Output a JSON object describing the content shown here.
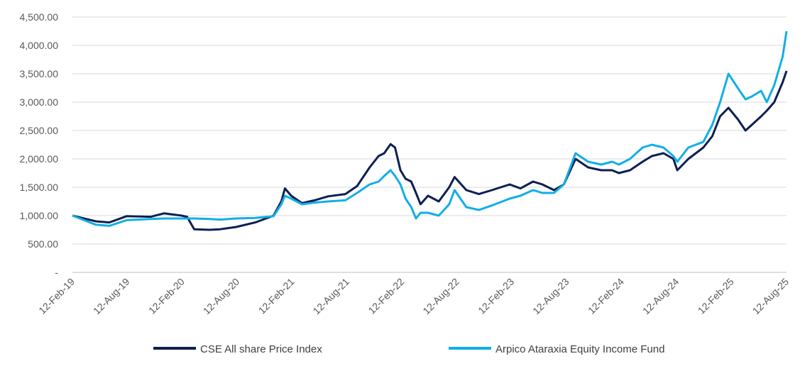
{
  "chart_data": {
    "type": "line",
    "title": "",
    "xlabel": "",
    "ylabel": "",
    "ylim": [
      0,
      4500
    ],
    "grid": "horizontal",
    "legend_position": "bottom",
    "y_ticks": [
      "-",
      "500.00",
      "1,000.00",
      "1,500.00",
      "2,000.00",
      "2,500.00",
      "3,000.00",
      "3,500.00",
      "4,000.00",
      "4,500.00"
    ],
    "x_ticks": [
      "12-Feb-19",
      "12-Aug-19",
      "12-Feb-20",
      "12-Aug-20",
      "12-Feb-21",
      "12-Aug-21",
      "12-Feb-22",
      "12-Aug-22",
      "12-Feb-23",
      "12-Aug-23",
      "12-Feb-24",
      "12-Aug-24",
      "12-Feb-25",
      "12-Aug-25"
    ],
    "series": [
      {
        "name": "CSE All share Price Index",
        "color": "#0d1f52",
        "x": [
          "2019-02-12",
          "2019-05-01",
          "2019-06-15",
          "2019-08-12",
          "2019-11-01",
          "2019-12-15",
          "2020-02-12",
          "2020-03-01",
          "2020-03-25",
          "2020-05-15",
          "2020-06-20",
          "2020-08-12",
          "2020-10-15",
          "2020-12-15",
          "2021-01-10",
          "2021-01-22",
          "2021-02-12",
          "2021-03-20",
          "2021-05-01",
          "2021-06-15",
          "2021-08-12",
          "2021-09-20",
          "2021-11-01",
          "2021-12-01",
          "2021-12-20",
          "2022-01-10",
          "2022-01-25",
          "2022-02-12",
          "2022-03-01",
          "2022-03-20",
          "2022-04-05",
          "2022-04-20",
          "2022-05-15",
          "2022-06-20",
          "2022-07-25",
          "2022-08-12",
          "2022-09-20",
          "2022-11-01",
          "2022-12-15",
          "2023-02-12",
          "2023-03-20",
          "2023-05-01",
          "2023-06-01",
          "2023-07-10",
          "2023-08-12",
          "2023-09-20",
          "2023-11-01",
          "2023-12-15",
          "2024-01-20",
          "2024-02-12",
          "2024-03-20",
          "2024-05-01",
          "2024-06-01",
          "2024-07-10",
          "2024-08-12",
          "2024-08-25",
          "2024-10-01",
          "2024-11-20",
          "2024-12-20",
          "2025-01-15",
          "2025-02-12",
          "2025-03-15",
          "2025-04-10",
          "2025-05-01",
          "2025-06-01",
          "2025-06-20",
          "2025-07-15",
          "2025-08-12",
          "2025-08-25"
        ],
        "values": [
          1000,
          900,
          880,
          990,
          980,
          1040,
          1000,
          980,
          760,
          750,
          760,
          800,
          880,
          1000,
          1250,
          1480,
          1350,
          1220,
          1270,
          1340,
          1380,
          1520,
          1850,
          2050,
          2100,
          2260,
          2200,
          1800,
          1650,
          1600,
          1400,
          1200,
          1350,
          1250,
          1500,
          1680,
          1450,
          1380,
          1450,
          1550,
          1480,
          1600,
          1550,
          1450,
          1550,
          2000,
          1850,
          1800,
          1800,
          1750,
          1800,
          1950,
          2050,
          2100,
          2000,
          1800,
          2000,
          2200,
          2400,
          2750,
          2900,
          2700,
          2500,
          2600,
          2750,
          2850,
          3000,
          3350,
          3550
        ]
      },
      {
        "name": "Arpico Ataraxia Equity Income Fund",
        "color": "#12aee8",
        "x": [
          "2019-02-12",
          "2019-05-01",
          "2019-06-15",
          "2019-08-12",
          "2019-11-01",
          "2019-12-15",
          "2020-02-12",
          "2020-03-01",
          "2020-03-25",
          "2020-05-15",
          "2020-06-20",
          "2020-08-12",
          "2020-10-15",
          "2020-12-15",
          "2021-01-10",
          "2021-01-22",
          "2021-02-12",
          "2021-03-20",
          "2021-05-01",
          "2021-06-15",
          "2021-08-12",
          "2021-09-20",
          "2021-11-01",
          "2021-12-01",
          "2021-12-20",
          "2022-01-10",
          "2022-01-25",
          "2022-02-12",
          "2022-03-01",
          "2022-03-20",
          "2022-04-05",
          "2022-04-20",
          "2022-05-15",
          "2022-06-20",
          "2022-07-25",
          "2022-08-12",
          "2022-09-20",
          "2022-11-01",
          "2022-12-15",
          "2023-02-12",
          "2023-03-20",
          "2023-05-01",
          "2023-06-01",
          "2023-07-10",
          "2023-08-12",
          "2023-09-20",
          "2023-11-01",
          "2023-12-15",
          "2024-01-20",
          "2024-02-12",
          "2024-03-20",
          "2024-05-01",
          "2024-06-01",
          "2024-07-10",
          "2024-08-12",
          "2024-08-25",
          "2024-10-01",
          "2024-11-20",
          "2024-12-20",
          "2025-01-15",
          "2025-02-12",
          "2025-03-15",
          "2025-04-10",
          "2025-05-01",
          "2025-06-01",
          "2025-06-20",
          "2025-07-15",
          "2025-08-12",
          "2025-08-25"
        ],
        "values": [
          1000,
          840,
          820,
          920,
          940,
          950,
          950,
          950,
          950,
          940,
          930,
          950,
          960,
          990,
          1200,
          1350,
          1300,
          1200,
          1230,
          1250,
          1270,
          1400,
          1550,
          1600,
          1700,
          1800,
          1700,
          1550,
          1300,
          1150,
          950,
          1050,
          1050,
          1000,
          1200,
          1450,
          1150,
          1100,
          1180,
          1300,
          1350,
          1450,
          1400,
          1400,
          1550,
          2100,
          1950,
          1900,
          1950,
          1900,
          2000,
          2200,
          2250,
          2200,
          2050,
          1950,
          2200,
          2300,
          2600,
          3000,
          3500,
          3250,
          3050,
          3100,
          3200,
          3000,
          3300,
          3800,
          4250
        ]
      }
    ]
  }
}
